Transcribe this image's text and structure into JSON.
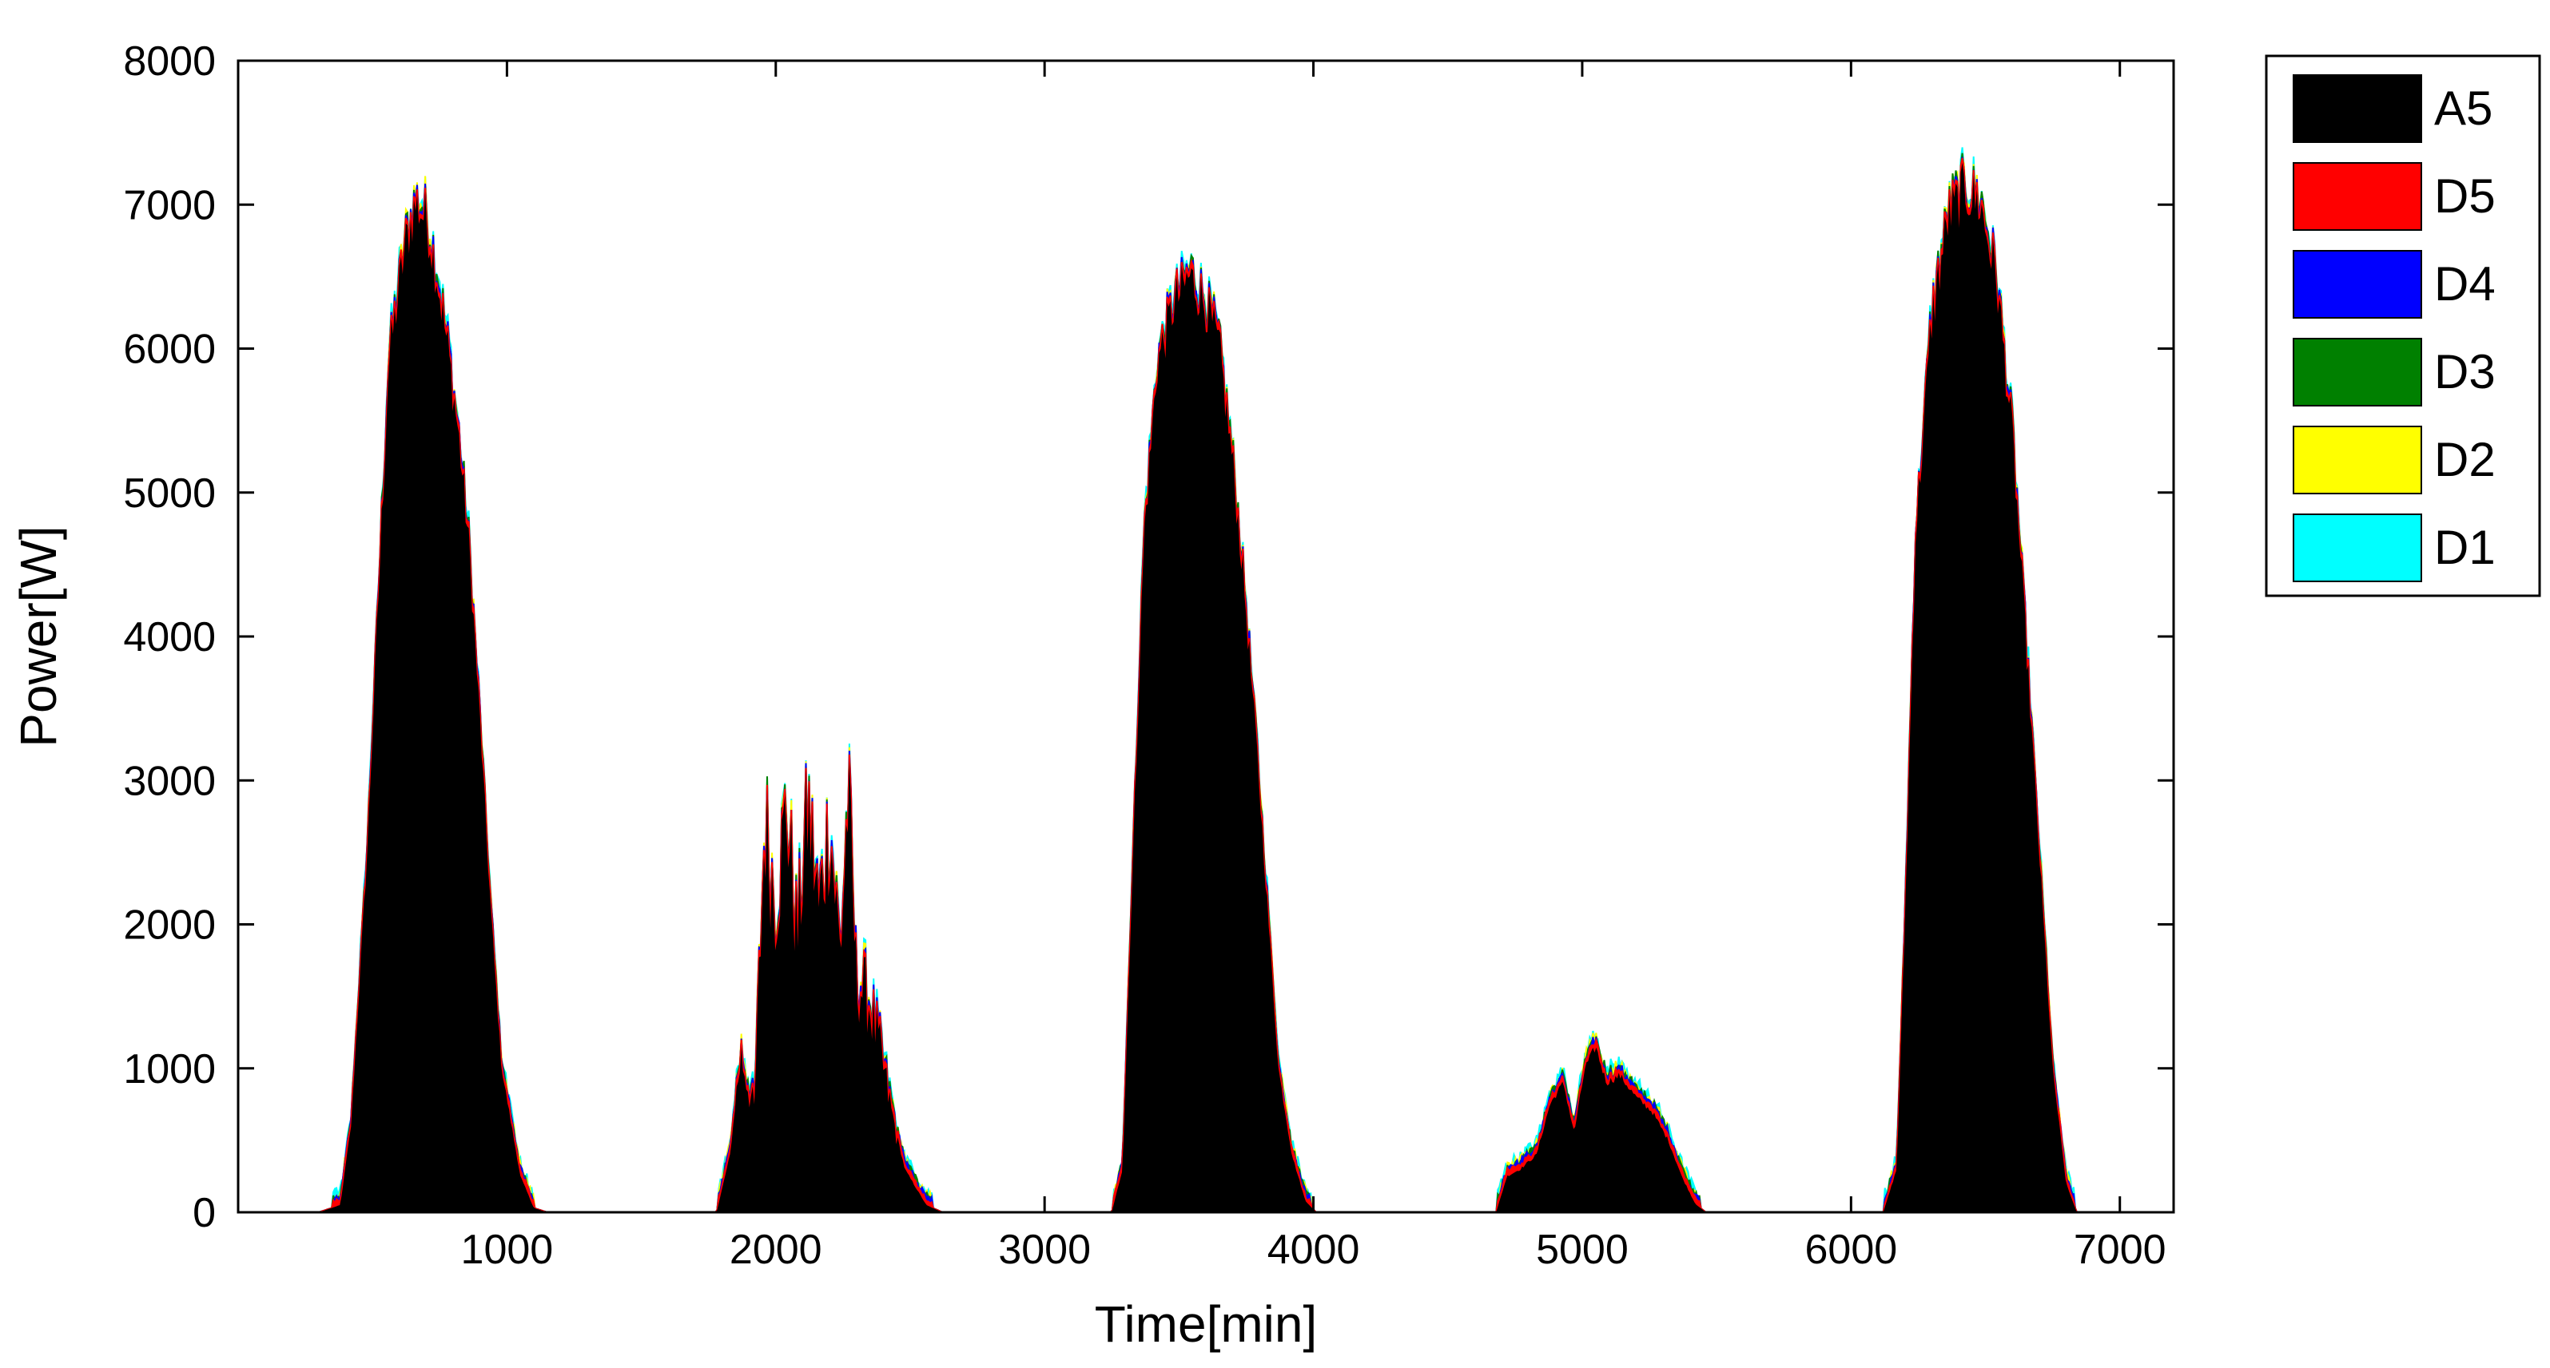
{
  "chart_data": {
    "type": "area",
    "xlabel": "Time[min]",
    "ylabel": "Power[W]",
    "xlim": [
      0,
      7200
    ],
    "ylim": [
      0,
      8000
    ],
    "xticks": [
      1000,
      2000,
      3000,
      4000,
      5000,
      6000,
      7000
    ],
    "yticks": [
      0,
      1000,
      2000,
      3000,
      4000,
      5000,
      6000,
      7000,
      8000
    ],
    "grid": false,
    "legend_position": "outside-top-right",
    "series": [
      {
        "name": "A5",
        "color": "#000000"
      },
      {
        "name": "D5",
        "color": "#ff0000"
      },
      {
        "name": "D4",
        "color": "#0000ff"
      },
      {
        "name": "D3",
        "color": "#008000"
      },
      {
        "name": "D2",
        "color": "#ffff00"
      },
      {
        "name": "D1",
        "color": "#00ffff"
      }
    ],
    "profile": {
      "x": [
        0,
        300,
        380,
        420,
        480,
        560,
        620,
        660,
        700,
        740,
        780,
        820,
        860,
        900,
        940,
        980,
        1050,
        1100,
        1150,
        1780,
        1830,
        1870,
        1920,
        1960,
        2000,
        2040,
        2080,
        2120,
        2160,
        2200,
        2240,
        2270,
        2300,
        2340,
        2380,
        2430,
        2480,
        2560,
        2620,
        3250,
        3290,
        3320,
        3370,
        3420,
        3480,
        3540,
        3600,
        3650,
        3700,
        3740,
        3790,
        3830,
        3870,
        3920,
        3970,
        4010,
        4680,
        4720,
        4770,
        4830,
        4880,
        4930,
        4970,
        5010,
        5050,
        5090,
        5140,
        5200,
        5260,
        5320,
        5370,
        5420,
        5460,
        6120,
        6170,
        6200,
        6240,
        6300,
        6360,
        6420,
        6480,
        6540,
        6600,
        6650,
        6700,
        6750,
        6800,
        6840,
        7200
      ],
      "y": [
        0,
        0,
        50,
        600,
        2500,
        5900,
        6700,
        7000,
        6900,
        6500,
        6000,
        5400,
        4600,
        3400,
        2100,
        1000,
        250,
        30,
        0,
        0,
        400,
        1100,
        700,
        2700,
        2100,
        2800,
        1900,
        2800,
        2100,
        2700,
        1800,
        2900,
        1600,
        1500,
        1200,
        700,
        300,
        50,
        0,
        0,
        300,
        2000,
        4700,
        5900,
        6300,
        6500,
        6300,
        6000,
        5200,
        4400,
        3200,
        2100,
        1000,
        400,
        80,
        0,
        0,
        250,
        300,
        400,
        750,
        900,
        550,
        1000,
        1150,
        900,
        950,
        800,
        700,
        500,
        250,
        60,
        0,
        0,
        300,
        2000,
        4700,
        6200,
        6900,
        7100,
        7000,
        6500,
        5400,
        4000,
        2500,
        1000,
        200,
        0,
        0
      ]
    }
  },
  "legend": [
    {
      "label": "A5",
      "color": "#000000"
    },
    {
      "label": "D5",
      "color": "#ff0000"
    },
    {
      "label": "D4",
      "color": "#0000ff"
    },
    {
      "label": "D3",
      "color": "#008000"
    },
    {
      "label": "D2",
      "color": "#ffff00"
    },
    {
      "label": "D1",
      "color": "#00ffff"
    }
  ]
}
